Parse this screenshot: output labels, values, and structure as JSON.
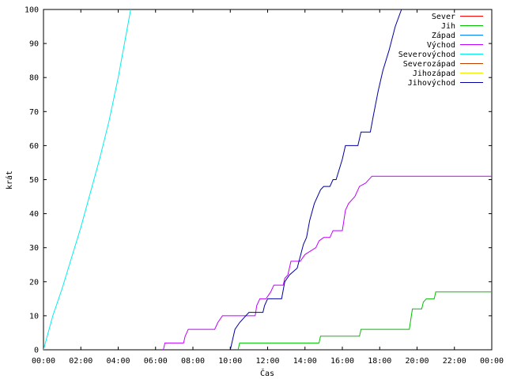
{
  "chart_data": {
    "type": "line",
    "title": "",
    "xlabel": "Čas",
    "ylabel": "krát",
    "xlim": [
      "00:00",
      "24:00"
    ],
    "ylim": [
      0,
      100
    ],
    "grid": false,
    "legend_position": "top-right",
    "x_ticks": [
      "00:00",
      "02:00",
      "04:00",
      "06:00",
      "08:00",
      "10:00",
      "12:00",
      "14:00",
      "16:00",
      "18:00",
      "20:00",
      "22:00",
      "00:00"
    ],
    "y_ticks": [
      "0",
      "10",
      "20",
      "30",
      "40",
      "50",
      "60",
      "70",
      "80",
      "90",
      "100"
    ],
    "series": [
      {
        "name": "Sever",
        "color": "#ff0000",
        "points": []
      },
      {
        "name": "Jih",
        "color": "#00c000",
        "points": [
          [
            "10:25",
            0
          ],
          [
            "10:30",
            2
          ],
          [
            "14:45",
            2
          ],
          [
            "14:50",
            4
          ],
          [
            "16:55",
            4
          ],
          [
            "17:00",
            6
          ],
          [
            "19:35",
            6
          ],
          [
            "19:45",
            12
          ],
          [
            "20:15",
            12
          ],
          [
            "20:20",
            14
          ],
          [
            "20:30",
            15
          ],
          [
            "20:55",
            15
          ],
          [
            "21:00",
            17
          ],
          [
            "24:00",
            17
          ]
        ]
      },
      {
        "name": "Západ",
        "color": "#0080ff",
        "points": []
      },
      {
        "name": "Východ",
        "color": "#c000ff",
        "points": [
          [
            "06:25",
            0
          ],
          [
            "06:30",
            2
          ],
          [
            "07:30",
            2
          ],
          [
            "07:35",
            4
          ],
          [
            "07:45",
            6
          ],
          [
            "09:10",
            6
          ],
          [
            "09:20",
            8
          ],
          [
            "09:35",
            10
          ],
          [
            "11:20",
            10
          ],
          [
            "11:25",
            13
          ],
          [
            "11:35",
            15
          ],
          [
            "11:55",
            15
          ],
          [
            "12:10",
            17
          ],
          [
            "12:20",
            19
          ],
          [
            "12:50",
            19
          ],
          [
            "12:55",
            21
          ],
          [
            "13:05",
            22
          ],
          [
            "13:15",
            26
          ],
          [
            "13:45",
            26
          ],
          [
            "14:00",
            28
          ],
          [
            "14:35",
            30
          ],
          [
            "14:45",
            32
          ],
          [
            "15:00",
            33
          ],
          [
            "15:20",
            33
          ],
          [
            "15:30",
            35
          ],
          [
            "16:00",
            35
          ],
          [
            "16:10",
            41
          ],
          [
            "16:20",
            43
          ],
          [
            "16:40",
            45
          ],
          [
            "16:55",
            48
          ],
          [
            "17:15",
            49
          ],
          [
            "17:35",
            51
          ],
          [
            "24:00",
            51
          ]
        ]
      },
      {
        "name": "Severovýchod",
        "color": "#00eeee",
        "points": [
          [
            "00:00",
            0
          ],
          [
            "00:30",
            10
          ],
          [
            "01:00",
            18
          ],
          [
            "01:30",
            27
          ],
          [
            "02:00",
            36
          ],
          [
            "02:30",
            46
          ],
          [
            "03:00",
            56
          ],
          [
            "03:30",
            67
          ],
          [
            "04:00",
            80
          ],
          [
            "04:20",
            90
          ],
          [
            "04:40",
            100
          ]
        ]
      },
      {
        "name": "Severozápad",
        "color": "#c04000",
        "points": []
      },
      {
        "name": "Jihozápad",
        "color": "#eeee00",
        "points": []
      },
      {
        "name": "Jihovýchod",
        "color": "#0000a0",
        "points": [
          [
            "10:00",
            0
          ],
          [
            "10:15",
            6
          ],
          [
            "10:30",
            8
          ],
          [
            "10:50",
            10
          ],
          [
            "11:00",
            11
          ],
          [
            "11:45",
            11
          ],
          [
            "11:50",
            13
          ],
          [
            "12:00",
            15
          ],
          [
            "12:45",
            15
          ],
          [
            "12:55",
            20
          ],
          [
            "13:10",
            22
          ],
          [
            "13:35",
            24
          ],
          [
            "13:55",
            31
          ],
          [
            "14:05",
            33
          ],
          [
            "14:15",
            38
          ],
          [
            "14:30",
            43
          ],
          [
            "14:50",
            47
          ],
          [
            "15:00",
            48
          ],
          [
            "15:20",
            48
          ],
          [
            "15:30",
            50
          ],
          [
            "15:40",
            50
          ],
          [
            "16:00",
            56
          ],
          [
            "16:10",
            60
          ],
          [
            "16:50",
            60
          ],
          [
            "17:00",
            64
          ],
          [
            "17:30",
            64
          ],
          [
            "17:40",
            69
          ],
          [
            "17:55",
            76
          ],
          [
            "18:10",
            82
          ],
          [
            "18:30",
            88
          ],
          [
            "18:50",
            95
          ],
          [
            "19:10",
            100
          ]
        ]
      }
    ]
  }
}
